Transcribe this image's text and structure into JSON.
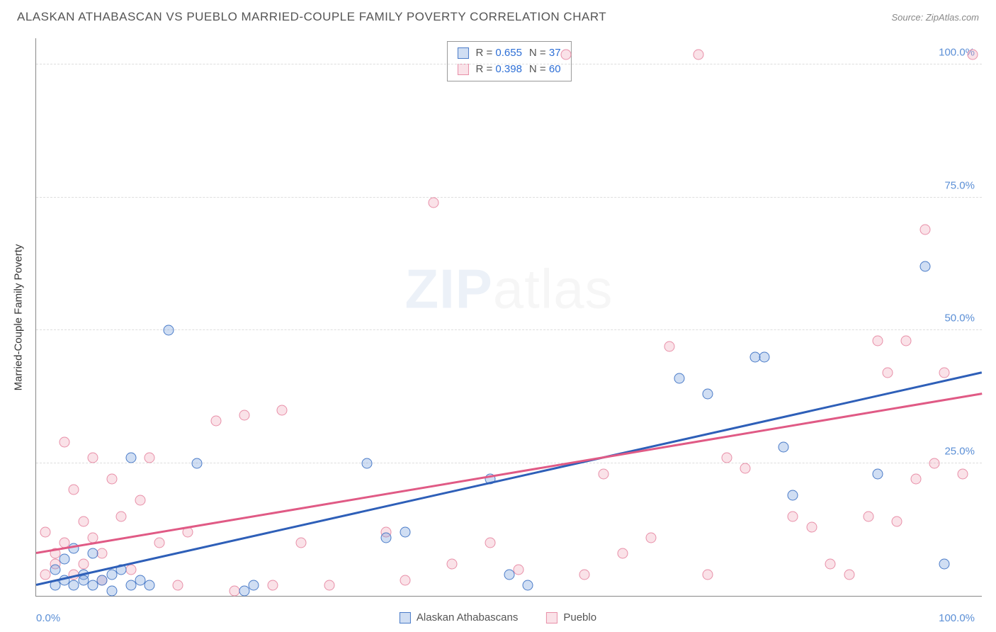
{
  "title": "ALASKAN ATHABASCAN VS PUEBLO MARRIED-COUPLE FAMILY POVERTY CORRELATION CHART",
  "source": "Source: ZipAtlas.com",
  "yaxis_label": "Married-Couple Family Poverty",
  "watermark_a": "ZIP",
  "watermark_b": "atlas",
  "chart": {
    "type": "scatter",
    "xlim": [
      0,
      100
    ],
    "ylim": [
      0,
      105
    ],
    "xticks": [
      {
        "value": 0,
        "label": "0.0%"
      },
      {
        "value": 100,
        "label": "100.0%"
      }
    ],
    "yticks": [
      {
        "value": 25,
        "label": "25.0%"
      },
      {
        "value": 50,
        "label": "50.0%"
      },
      {
        "value": 75,
        "label": "75.0%"
      },
      {
        "value": 100,
        "label": "100.0%"
      }
    ],
    "grid_color": "#dddddd",
    "background_color": "#ffffff",
    "marker_radius": 7.5,
    "series": [
      {
        "name": "Alaskan Athabascans",
        "color_fill": "rgba(120,160,220,0.35)",
        "color_stroke": "#4a7bc8",
        "trend_color": "#2e5fb8",
        "R": "0.655",
        "N": "37",
        "trend": {
          "x1": 0,
          "y1": 2,
          "x2": 100,
          "y2": 42
        },
        "points": [
          [
            2,
            2
          ],
          [
            2,
            5
          ],
          [
            3,
            3
          ],
          [
            3,
            7
          ],
          [
            4,
            9
          ],
          [
            4,
            2
          ],
          [
            5,
            4
          ],
          [
            5,
            3
          ],
          [
            6,
            8
          ],
          [
            6,
            2
          ],
          [
            7,
            3
          ],
          [
            8,
            4
          ],
          [
            8,
            1
          ],
          [
            9,
            5
          ],
          [
            10,
            2
          ],
          [
            10,
            26
          ],
          [
            11,
            3
          ],
          [
            12,
            2
          ],
          [
            14,
            50
          ],
          [
            17,
            25
          ],
          [
            22,
            1
          ],
          [
            23,
            2
          ],
          [
            35,
            25
          ],
          [
            37,
            11
          ],
          [
            39,
            12
          ],
          [
            48,
            22
          ],
          [
            50,
            4
          ],
          [
            52,
            2
          ],
          [
            68,
            41
          ],
          [
            71,
            38
          ],
          [
            76,
            45
          ],
          [
            77,
            45
          ],
          [
            79,
            28
          ],
          [
            80,
            19
          ],
          [
            94,
            62
          ],
          [
            96,
            6
          ],
          [
            89,
            23
          ]
        ]
      },
      {
        "name": "Pueblo",
        "color_fill": "rgba(240,160,180,0.3)",
        "color_stroke": "#e88fa8",
        "trend_color": "#e05a85",
        "R": "0.398",
        "N": "60",
        "trend": {
          "x1": 0,
          "y1": 8,
          "x2": 100,
          "y2": 38
        },
        "points": [
          [
            1,
            12
          ],
          [
            1,
            4
          ],
          [
            2,
            6
          ],
          [
            2,
            8
          ],
          [
            3,
            29
          ],
          [
            3,
            10
          ],
          [
            4,
            20
          ],
          [
            4,
            4
          ],
          [
            5,
            14
          ],
          [
            5,
            6
          ],
          [
            6,
            26
          ],
          [
            6,
            11
          ],
          [
            7,
            8
          ],
          [
            7,
            3
          ],
          [
            8,
            22
          ],
          [
            9,
            15
          ],
          [
            10,
            5
          ],
          [
            11,
            18
          ],
          [
            12,
            26
          ],
          [
            13,
            10
          ],
          [
            15,
            2
          ],
          [
            16,
            12
          ],
          [
            19,
            33
          ],
          [
            21,
            1
          ],
          [
            22,
            34
          ],
          [
            25,
            2
          ],
          [
            26,
            35
          ],
          [
            28,
            10
          ],
          [
            31,
            2
          ],
          [
            37,
            12
          ],
          [
            39,
            3
          ],
          [
            42,
            74
          ],
          [
            44,
            6
          ],
          [
            48,
            10
          ],
          [
            51,
            5
          ],
          [
            56,
            102
          ],
          [
            58,
            4
          ],
          [
            60,
            23
          ],
          [
            62,
            8
          ],
          [
            65,
            11
          ],
          [
            67,
            47
          ],
          [
            70,
            102
          ],
          [
            71,
            4
          ],
          [
            73,
            26
          ],
          [
            75,
            24
          ],
          [
            80,
            15
          ],
          [
            82,
            13
          ],
          [
            84,
            6
          ],
          [
            86,
            4
          ],
          [
            88,
            15
          ],
          [
            89,
            48
          ],
          [
            90,
            42
          ],
          [
            91,
            14
          ],
          [
            92,
            48
          ],
          [
            93,
            22
          ],
          [
            94,
            69
          ],
          [
            95,
            25
          ],
          [
            96,
            42
          ],
          [
            98,
            23
          ],
          [
            99,
            102
          ]
        ]
      }
    ]
  },
  "legend": {
    "items": [
      {
        "label": "Alaskan Athabascans",
        "class": "blue"
      },
      {
        "label": "Pueblo",
        "class": "pink"
      }
    ]
  }
}
